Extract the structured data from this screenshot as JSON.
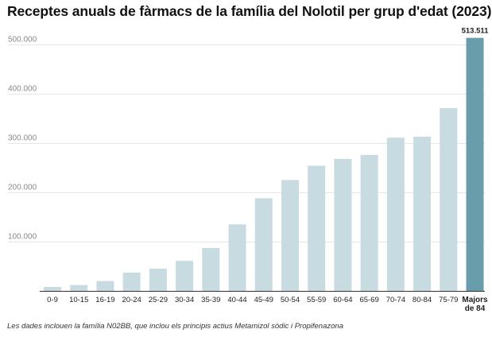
{
  "title": "Receptes anuals de fàrmacs de la família del Nolotil per grup d'edat (2023)",
  "note": "Les dades inclouen la família N02BB, que inclou els principis actius Metamizol sòdic i Propifenazona",
  "chart_data": {
    "type": "bar",
    "title": "Receptes anuals de fàrmacs de la família del Nolotil per grup d'edat (2023)",
    "xlabel": "",
    "ylabel": "",
    "ylim": [
      0,
      540000
    ],
    "y_ticks": [
      {
        "value": 100000,
        "label": "100.000"
      },
      {
        "value": 200000,
        "label": "200.000"
      },
      {
        "value": 300000,
        "label": "300.000"
      },
      {
        "value": 400000,
        "label": "400.000"
      },
      {
        "value": 500000,
        "label": "500.000"
      }
    ],
    "grid": true,
    "categories": [
      "0-9",
      "10-15",
      "16-19",
      "20-24",
      "25-29",
      "30-34",
      "35-39",
      "40-44",
      "45-49",
      "50-54",
      "55-59",
      "60-64",
      "65-69",
      "70-74",
      "80-84",
      "75-79",
      "Majors de 84"
    ],
    "category_lines": [
      [
        "0-9"
      ],
      [
        "10-15"
      ],
      [
        "16-19"
      ],
      [
        "20-24"
      ],
      [
        "25-29"
      ],
      [
        "30-34"
      ],
      [
        "35-39"
      ],
      [
        "40-44"
      ],
      [
        "45-49"
      ],
      [
        "50-54"
      ],
      [
        "55-59"
      ],
      [
        "60-64"
      ],
      [
        "65-69"
      ],
      [
        "70-74"
      ],
      [
        "80-84"
      ],
      [
        "75-79"
      ],
      [
        "Majors",
        "de 84"
      ]
    ],
    "values": [
      8000,
      12000,
      20000,
      37000,
      45000,
      61000,
      87000,
      135000,
      188000,
      225000,
      254000,
      268000,
      276000,
      311000,
      313000,
      371000,
      513511
    ],
    "highlight_index": 16,
    "value_labels": [
      {
        "index": 16,
        "text": "513.511"
      }
    ],
    "colors": {
      "bar": "#c8dbe0",
      "highlight": "#6a9dab",
      "grid": "#e6e6e6",
      "axis": "#333333"
    }
  }
}
